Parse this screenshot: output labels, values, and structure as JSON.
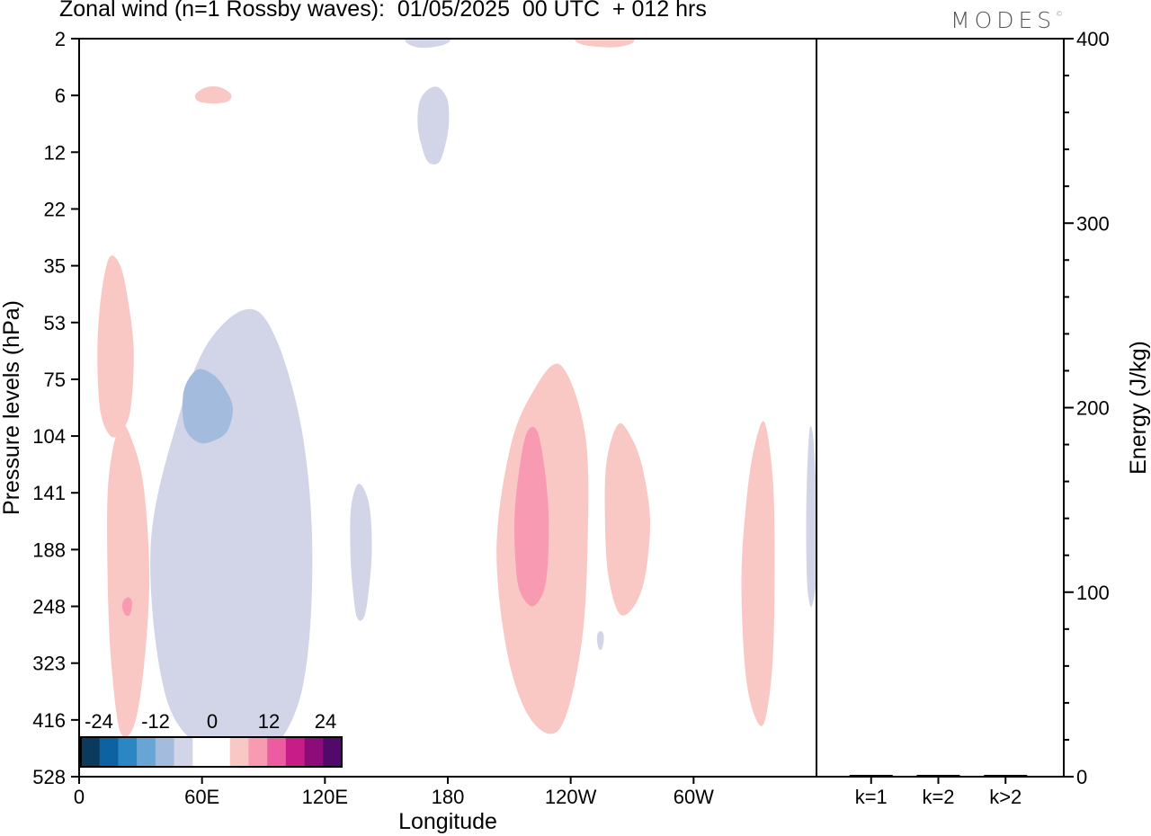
{
  "title": "Zonal wind (n=1 Rossby waves):  01/05/2025  00 UTC  + 012 hrs",
  "logo": "MODES",
  "logo_mark": "©",
  "chart_data": [
    {
      "type": "heatmap",
      "title": "Zonal wind (n=1 Rossby waves):  01/05/2025  00 UTC  + 012 hrs",
      "xlabel": "Longitude",
      "ylabel": "Pressure levels (hPa)",
      "x_ticks": [
        "0",
        "60E",
        "120E",
        "180",
        "120W",
        "60W"
      ],
      "x_range": [
        0,
        360
      ],
      "y_ticks": [
        "2",
        "6",
        "12",
        "22",
        "35",
        "53",
        "75",
        "104",
        "141",
        "188",
        "248",
        "323",
        "416",
        "528"
      ],
      "y_scale": "categorical pressure levels, top 2 hPa to bottom 528 hPa",
      "colorbar": {
        "tick_labels": [
          "-24",
          "-12",
          "0",
          "12",
          "24"
        ],
        "colors": [
          "#0b3a5c",
          "#0d62a2",
          "#2a87c3",
          "#67a6d4",
          "#a3bbdc",
          "#d2d4e8",
          "#ffffff",
          "#ffffff",
          "#f9c8c5",
          "#f89bb2",
          "#ec5ca0",
          "#c81d86",
          "#8c0c7a",
          "#520a6a"
        ]
      },
      "features": [
        {
          "sign": "positive",
          "level": 1,
          "lon_range": [
            57,
            74
          ],
          "p_range": [
            6,
            6
          ]
        },
        {
          "sign": "negative",
          "level": 1,
          "lon_range": [
            158,
            181
          ],
          "p_range": [
            2,
            2
          ]
        },
        {
          "sign": "negative",
          "level": 1,
          "lon_range": [
            165,
            181
          ],
          "p_range": [
            6,
            12
          ]
        },
        {
          "sign": "positive",
          "level": 1,
          "lon_range": [
            243,
            272
          ],
          "p_range": [
            2,
            2
          ]
        },
        {
          "sign": "positive",
          "level": 1,
          "lon_range": [
            9,
            26
          ],
          "p_range": [
            35,
            104
          ]
        },
        {
          "sign": "positive",
          "level": 1,
          "lon_range": [
            13,
            34
          ],
          "p_range": [
            104,
            416
          ]
        },
        {
          "sign": "positive",
          "level": 2,
          "lon_range": [
            21,
            26
          ],
          "p_range": [
            248,
            248
          ]
        },
        {
          "sign": "negative",
          "level": 1,
          "lon_range": [
            38,
            114
          ],
          "p_range": [
            53,
            528
          ]
        },
        {
          "sign": "negative",
          "level": 2,
          "lon_range": [
            50,
            74
          ],
          "p_range": [
            75,
            104
          ]
        },
        {
          "sign": "negative",
          "level": 1,
          "lon_range": [
            132,
            143
          ],
          "p_range": [
            141,
            248
          ]
        },
        {
          "sign": "positive",
          "level": 1,
          "lon_range": [
            205,
            250
          ],
          "p_range": [
            75,
            416
          ]
        },
        {
          "sign": "positive",
          "level": 2,
          "lon_range": [
            213,
            229
          ],
          "p_range": [
            104,
            248
          ]
        },
        {
          "sign": "positive",
          "level": 1,
          "lon_range": [
            256,
            278
          ],
          "p_range": [
            104,
            248
          ]
        },
        {
          "sign": "negative",
          "level": 1,
          "lon_range": [
            253,
            256
          ],
          "p_range": [
            290,
            290
          ]
        },
        {
          "sign": "positive",
          "level": 1,
          "lon_range": [
            324,
            340
          ],
          "p_range": [
            104,
            416
          ]
        },
        {
          "sign": "negative",
          "level": 1,
          "lon_range": [
            355,
            360
          ],
          "p_range": [
            104,
            248
          ]
        }
      ]
    },
    {
      "type": "bar",
      "ylabel": "Energy (J/kg)",
      "ylim": [
        0,
        400
      ],
      "y_ticks": [
        "0",
        "100",
        "200",
        "300",
        "400"
      ],
      "categories": [
        "k=1",
        "k=2",
        "k>2"
      ],
      "values": [
        0.3,
        0.3,
        0.3
      ]
    }
  ]
}
